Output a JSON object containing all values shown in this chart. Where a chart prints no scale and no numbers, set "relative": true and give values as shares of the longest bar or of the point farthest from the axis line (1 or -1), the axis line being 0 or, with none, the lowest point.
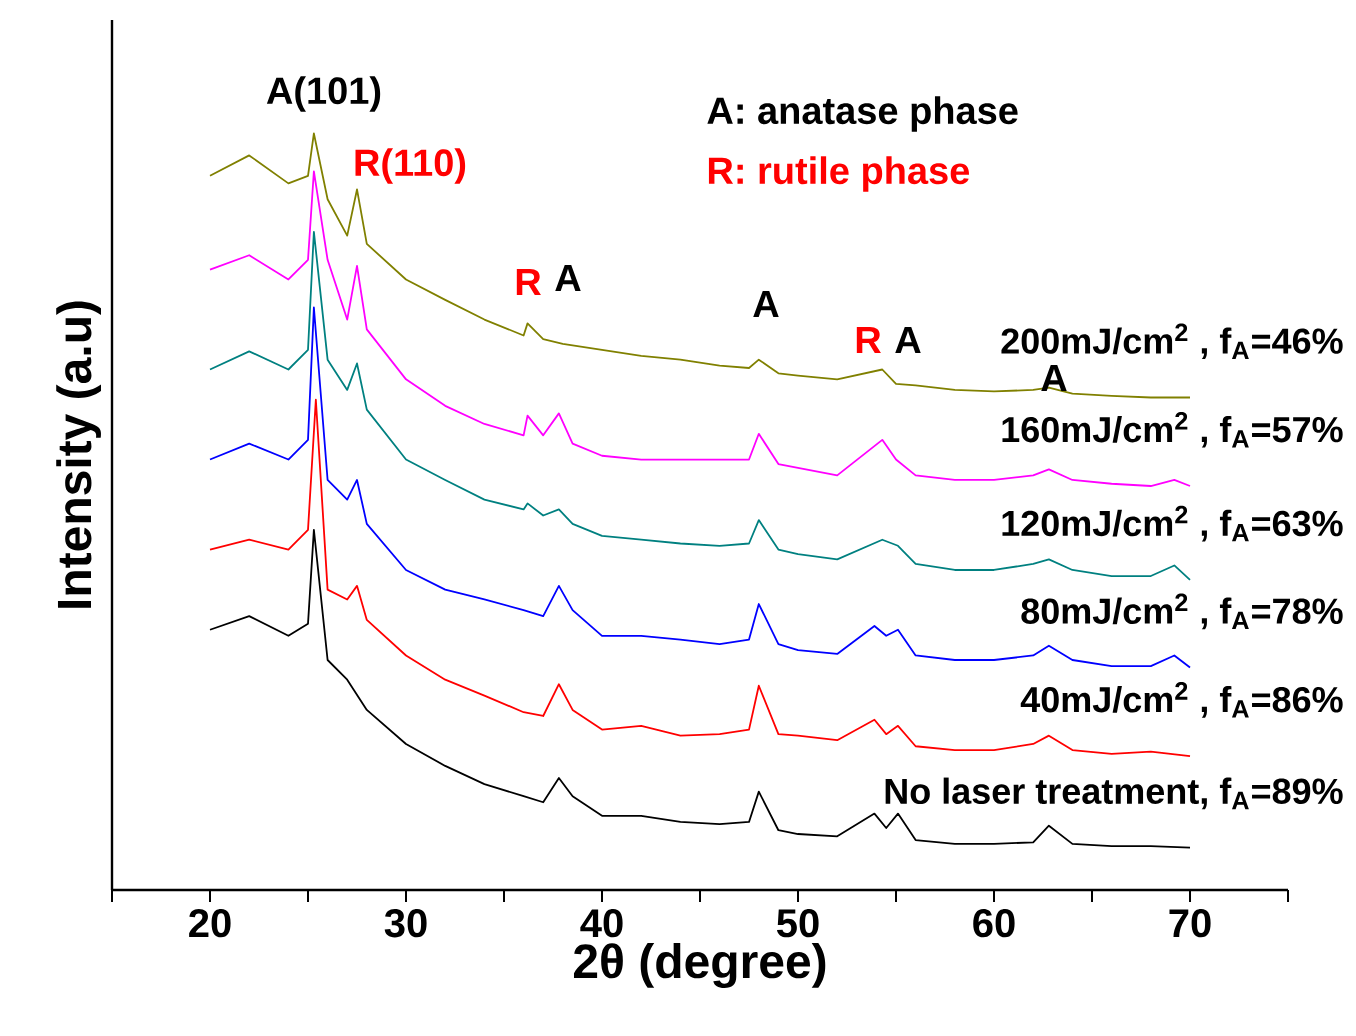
{
  "chart_data": {
    "type": "line",
    "relative": true,
    "xlabel": "2θ (degree)",
    "ylabel": "Intensity (a.u)",
    "xlim": [
      15,
      75
    ],
    "xticks": [
      {
        "value": 15,
        "label": null
      },
      20,
      {
        "value": 25,
        "label": null
      },
      30,
      {
        "value": 35,
        "label": null
      },
      40,
      {
        "value": 45,
        "label": null
      },
      50,
      {
        "value": 55,
        "label": null
      },
      60,
      {
        "value": 65,
        "label": null
      },
      70,
      {
        "value": 75,
        "label": null
      }
    ],
    "grid": false,
    "legend": false,
    "marker": "none",
    "line_style": "solid",
    "series": [
      {
        "name": "No laser treatment, f$_{A}$=89%",
        "color": "#000000",
        "x": [
          20,
          22,
          24,
          25,
          25.3,
          26,
          27,
          28,
          30,
          32,
          34,
          36,
          37,
          37.8,
          38.5,
          40,
          42,
          44,
          46,
          47.5,
          48,
          49,
          50,
          52,
          53.9,
          54.5,
          55.1,
          56,
          58,
          60,
          62,
          62.8,
          64,
          66,
          68,
          70
        ],
        "values": [
          0.344,
          0.362,
          0.336,
          0.352,
          0.476,
          0.304,
          0.278,
          0.238,
          0.193,
          0.164,
          0.14,
          0.124,
          0.116,
          0.148,
          0.124,
          0.098,
          0.098,
          0.09,
          0.087,
          0.09,
          0.13,
          0.079,
          0.074,
          0.071,
          0.101,
          0.082,
          0.101,
          0.066,
          0.061,
          0.061,
          0.063,
          0.085,
          0.061,
          0.058,
          0.058,
          0.056
        ]
      },
      {
        "name": "40mJ/cm$^{2}$ , f$_{A}$=86%",
        "color": "#ff0000",
        "x": [
          20,
          22,
          24,
          25,
          25.4,
          26,
          27,
          27.5,
          28,
          30,
          32,
          34,
          36,
          37,
          37.8,
          38.5,
          40,
          42,
          44,
          46,
          47.5,
          48,
          49,
          50,
          52,
          53.9,
          54.5,
          55.1,
          56,
          58,
          60,
          62,
          62.8,
          64,
          66,
          68,
          70
        ],
        "values": [
          0.45,
          0.463,
          0.45,
          0.476,
          0.648,
          0.397,
          0.384,
          0.402,
          0.357,
          0.31,
          0.278,
          0.257,
          0.235,
          0.23,
          0.272,
          0.238,
          0.212,
          0.217,
          0.204,
          0.206,
          0.212,
          0.27,
          0.206,
          0.204,
          0.198,
          0.225,
          0.206,
          0.217,
          0.19,
          0.185,
          0.185,
          0.193,
          0.204,
          0.185,
          0.18,
          0.183,
          0.177
        ]
      },
      {
        "name": "80mJ/cm$^{2}$ , f$_{A}$=78%",
        "color": "#0000ff",
        "x": [
          20,
          22,
          24,
          25,
          25.3,
          26,
          27,
          27.5,
          28,
          30,
          32,
          34,
          36,
          37,
          37.8,
          38.5,
          40,
          42,
          44,
          46,
          47.5,
          48,
          49,
          50,
          52,
          53.9,
          54.5,
          55.1,
          56,
          58,
          60,
          62,
          62.8,
          64,
          66,
          68,
          69.2,
          70
        ],
        "values": [
          0.569,
          0.59,
          0.569,
          0.595,
          0.77,
          0.542,
          0.516,
          0.542,
          0.484,
          0.423,
          0.397,
          0.384,
          0.37,
          0.362,
          0.402,
          0.37,
          0.336,
          0.336,
          0.331,
          0.325,
          0.331,
          0.378,
          0.325,
          0.317,
          0.312,
          0.349,
          0.336,
          0.344,
          0.31,
          0.304,
          0.304,
          0.31,
          0.323,
          0.304,
          0.296,
          0.296,
          0.31,
          0.294
        ]
      },
      {
        "name": "120mJ/cm$^{2}$ , f$_{A}$=63%",
        "color": "#008080",
        "x": [
          20,
          22,
          24,
          25,
          25.3,
          26,
          27,
          27.5,
          28,
          30,
          32,
          34,
          36,
          36.2,
          37,
          37.8,
          38.5,
          40,
          42,
          44,
          46,
          47.5,
          48,
          49,
          50,
          52,
          54.3,
          55.1,
          56,
          58,
          60,
          62,
          62.8,
          64,
          66,
          68,
          69.2,
          70
        ],
        "values": [
          0.688,
          0.712,
          0.688,
          0.714,
          0.87,
          0.701,
          0.661,
          0.696,
          0.635,
          0.569,
          0.542,
          0.516,
          0.503,
          0.511,
          0.495,
          0.503,
          0.484,
          0.468,
          0.463,
          0.458,
          0.455,
          0.458,
          0.489,
          0.45,
          0.444,
          0.437,
          0.463,
          0.455,
          0.431,
          0.423,
          0.423,
          0.431,
          0.437,
          0.423,
          0.415,
          0.415,
          0.429,
          0.41
        ]
      },
      {
        "name": "160mJ/cm$^{2}$ , f$_{A}$=57%",
        "color": "#ff00ff",
        "x": [
          20,
          22,
          24,
          25,
          25.3,
          26,
          27,
          27.5,
          28,
          30,
          32,
          34,
          36,
          36.2,
          37,
          37.8,
          38.5,
          40,
          42,
          44,
          46,
          47.5,
          48,
          49,
          50,
          52,
          54.3,
          55,
          56,
          58,
          60,
          62,
          62.8,
          64,
          66,
          68,
          69.2,
          70
        ],
        "values": [
          0.82,
          0.839,
          0.807,
          0.833,
          0.95,
          0.833,
          0.754,
          0.825,
          0.741,
          0.675,
          0.64,
          0.616,
          0.601,
          0.627,
          0.601,
          0.63,
          0.59,
          0.574,
          0.569,
          0.569,
          0.569,
          0.569,
          0.603,
          0.563,
          0.558,
          0.548,
          0.595,
          0.569,
          0.548,
          0.542,
          0.542,
          0.548,
          0.556,
          0.542,
          0.537,
          0.534,
          0.542,
          0.534
        ]
      },
      {
        "name": "200mJ/cm$^{2}$ , f$_{A}$=46%",
        "color": "#808000",
        "x": [
          20,
          22,
          24,
          25,
          25.3,
          26,
          27,
          27.5,
          28,
          30,
          32,
          34,
          36,
          36.2,
          37,
          38,
          40,
          42,
          44,
          46,
          47.5,
          48,
          49,
          50,
          52,
          54.3,
          55,
          56,
          58,
          60,
          62,
          62.8,
          64,
          66,
          68,
          70
        ],
        "values": [
          0.944,
          0.971,
          0.934,
          0.944,
          1,
          0.913,
          0.865,
          0.926,
          0.854,
          0.807,
          0.78,
          0.754,
          0.733,
          0.749,
          0.728,
          0.722,
          0.714,
          0.706,
          0.701,
          0.693,
          0.69,
          0.701,
          0.683,
          0.68,
          0.675,
          0.688,
          0.669,
          0.667,
          0.661,
          0.659,
          0.661,
          0.664,
          0.656,
          0.653,
          0.651,
          0.651
        ]
      }
    ],
    "annotations": [
      "A(101)",
      "R(110)",
      "R",
      "A",
      "A",
      "R",
      "A",
      "A",
      "A: anatase phase",
      "R: rutile phase"
    ]
  }
}
